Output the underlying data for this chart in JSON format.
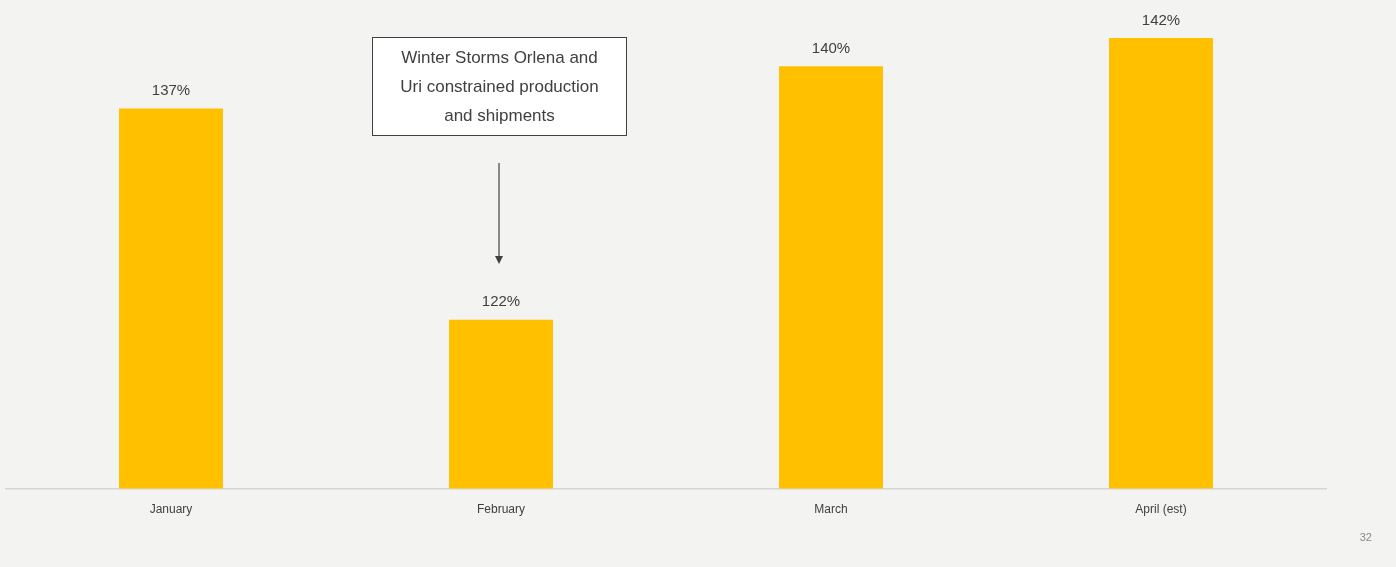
{
  "chart_data": {
    "type": "bar",
    "categories": [
      "January",
      "February",
      "March",
      "April (est)"
    ],
    "values": [
      137,
      122,
      140,
      142
    ],
    "color": "#ffc000",
    "ylim": [
      110,
      142
    ],
    "data_labels": true,
    "value_labels": [
      "137%",
      "122%",
      "140%",
      "142%"
    ],
    "tick_labels": "x",
    "grid": false,
    "legend": false,
    "annotations": [
      "Winter Storms Orlena and  Uri constrained production and shipments",
      "32"
    ]
  }
}
